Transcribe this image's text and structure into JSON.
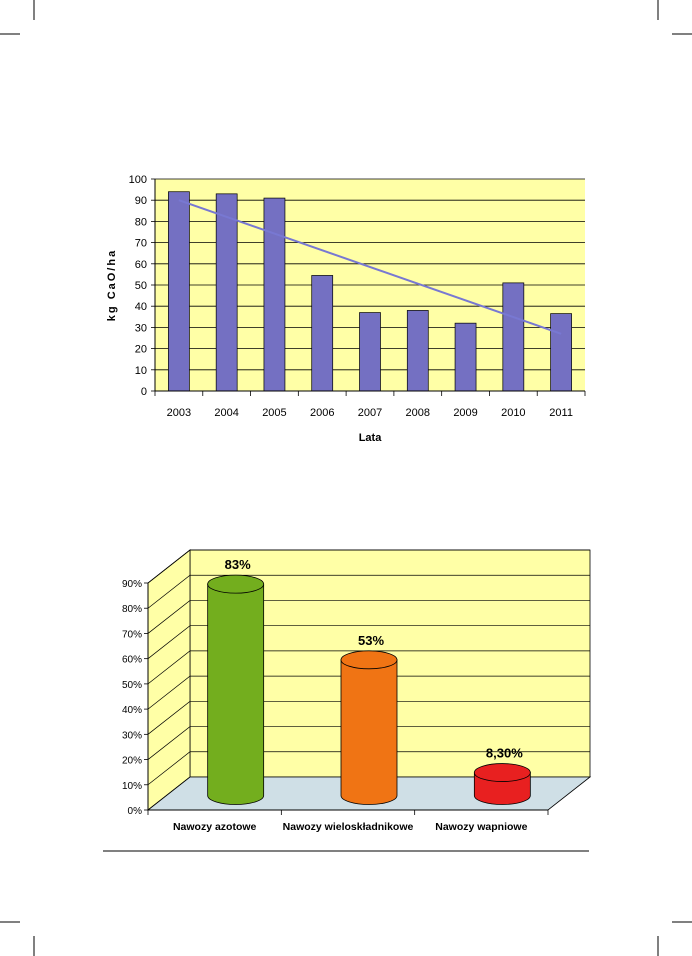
{
  "chart_data": [
    {
      "type": "bar",
      "ylabel": "kg  CaO/ha",
      "xlabel": "Lata",
      "ylim": [
        0,
        100
      ],
      "yticks": [
        0,
        10,
        20,
        30,
        40,
        50,
        60,
        70,
        80,
        90,
        100
      ],
      "categories": [
        "2003",
        "2004",
        "2005",
        "2006",
        "2007",
        "2008",
        "2009",
        "2010",
        "2011"
      ],
      "values": [
        94,
        93,
        91,
        54.5,
        37,
        38,
        32,
        51,
        36.5
      ],
      "trendline": {
        "type": "linear",
        "start": 90,
        "end": 27
      },
      "grid": true,
      "colors": {
        "bar": "#7470c2",
        "plot_background": "#ffffa6",
        "trend": "#7878d2"
      }
    },
    {
      "type": "bar",
      "style": "3d-cylinder",
      "ylim": [
        0,
        0.9
      ],
      "yticks": [
        "0%",
        "10%",
        "20%",
        "30%",
        "40%",
        "50%",
        "60%",
        "70%",
        "80%",
        "90%"
      ],
      "categories": [
        "Nawozy azotowe",
        "Nawozy wieloskładnikowe",
        "Nawozy wapniowe"
      ],
      "values": [
        0.83,
        0.53,
        0.083
      ],
      "data_labels": [
        "83%",
        "53%",
        "8,30%"
      ],
      "grid": true,
      "colors": {
        "series": [
          "#73ae1e",
          "#f07414",
          "#e82020"
        ],
        "wall": "#ffffa6",
        "floor": "#cfdfe6"
      }
    }
  ]
}
